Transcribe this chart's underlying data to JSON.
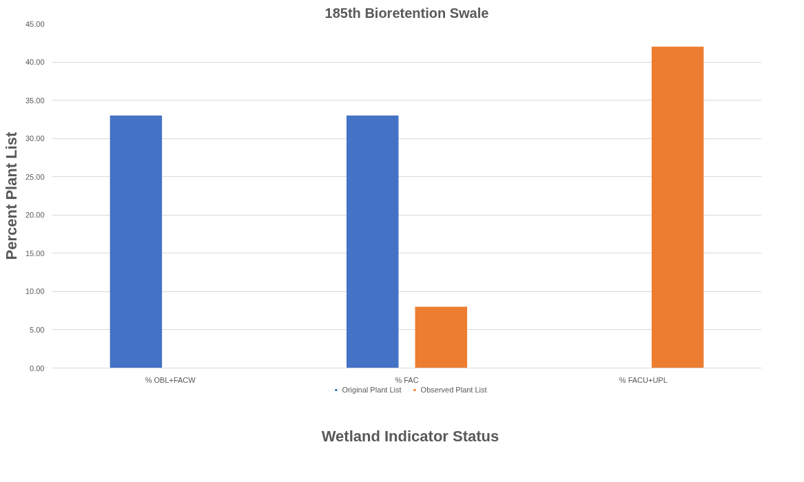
{
  "chart_data": {
    "type": "bar",
    "title": "185th Bioretention Swale",
    "xlabel": "Wetland Indicator Status",
    "ylabel": "Percent Plant List",
    "categories": [
      "% OBL+FACW",
      "% FAC",
      "% FACU+UPL"
    ],
    "series": [
      {
        "name": "Original Plant List",
        "color": "#4472c4",
        "values": [
          33,
          33,
          0
        ]
      },
      {
        "name": "Observed Plant List",
        "color": "#ed7d31",
        "values": [
          0,
          8,
          42
        ]
      }
    ],
    "ylim": [
      0,
      45
    ],
    "yticks": [
      {
        "value": 0,
        "label": "0.00"
      },
      {
        "value": 5,
        "label": "5.00"
      },
      {
        "value": 10,
        "label": "10.00"
      },
      {
        "value": 15,
        "label": "15.00"
      },
      {
        "value": 20,
        "label": "20.00"
      },
      {
        "value": 25,
        "label": "25.00"
      },
      {
        "value": 30,
        "label": "30.00"
      },
      {
        "value": 35,
        "label": "35.00"
      },
      {
        "value": 40,
        "label": "40.00"
      },
      {
        "value": 45,
        "label": "45.00"
      }
    ],
    "grid": "y",
    "legend": "bottom"
  }
}
